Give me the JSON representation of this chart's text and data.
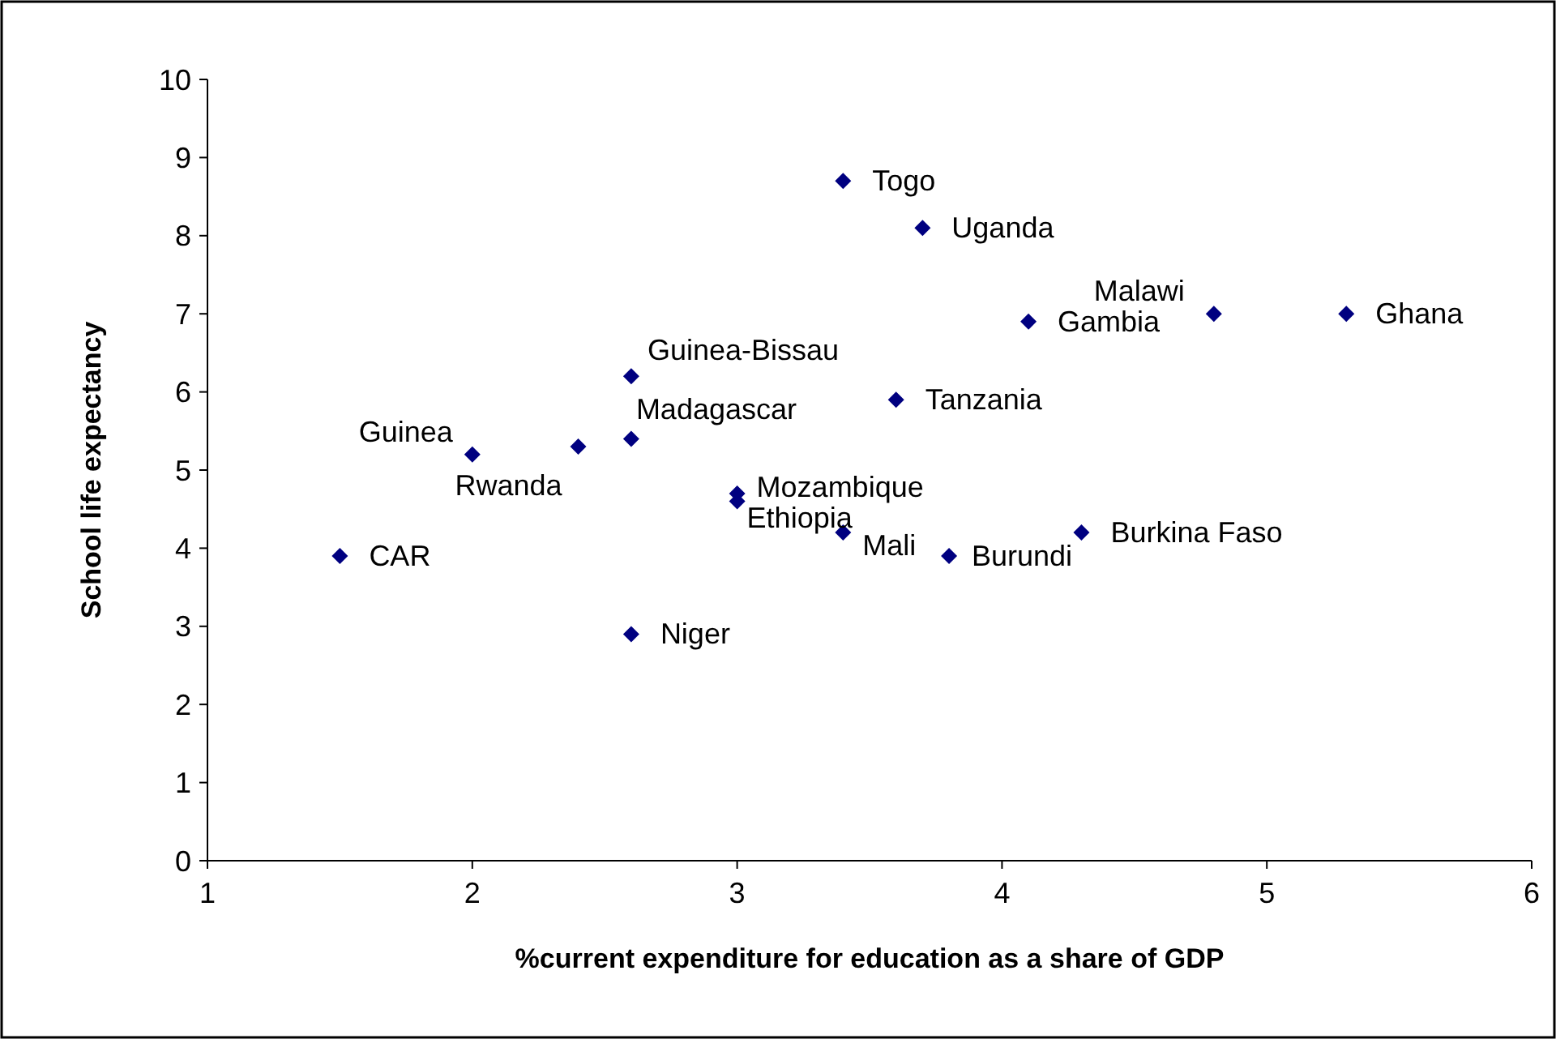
{
  "chart_data": {
    "type": "scatter",
    "xlabel": "%current expenditure for education as a share of GDP",
    "ylabel": "School life expectancy",
    "x": [
      3.4,
      3.7,
      4.8,
      5.3,
      4.1,
      2.6,
      3.6,
      2.0,
      2.4,
      2.6,
      3.0,
      3.0,
      3.4,
      3.8,
      4.3,
      1.5,
      2.6
    ],
    "series": [
      {
        "color": "#000080",
        "values": [
          8.7,
          8.1,
          7.0,
          7.0,
          6.9,
          6.2,
          5.9,
          5.2,
          5.3,
          5.4,
          4.7,
          4.6,
          4.2,
          3.9,
          4.2,
          3.9,
          2.9
        ]
      }
    ],
    "marker": "diamond",
    "grid": false,
    "xlim": [
      1,
      6
    ],
    "xticks": [
      1,
      2,
      3,
      4,
      5,
      6
    ],
    "ylim": [
      0,
      10
    ],
    "yticks": [
      0,
      1,
      2,
      3,
      4,
      5,
      6,
      7,
      8,
      9,
      10
    ],
    "annotations": [
      {
        "text": "Togo",
        "x": 3.4,
        "y": 8.7
      },
      {
        "text": "Uganda",
        "x": 3.7,
        "y": 8.1
      },
      {
        "text": "Malawi",
        "x": 4.8,
        "y": 7.0
      },
      {
        "text": "Ghana",
        "x": 5.3,
        "y": 7.0
      },
      {
        "text": "Gambia",
        "x": 4.1,
        "y": 6.9
      },
      {
        "text": "Guinea-Bissau",
        "x": 2.6,
        "y": 6.2
      },
      {
        "text": "Tanzania",
        "x": 3.6,
        "y": 5.9
      },
      {
        "text": "Guinea",
        "x": 2.0,
        "y": 5.2
      },
      {
        "text": "Rwanda",
        "x": 2.4,
        "y": 5.3
      },
      {
        "text": "Madagascar",
        "x": 2.6,
        "y": 5.4
      },
      {
        "text": "Mozambique",
        "x": 3.0,
        "y": 4.7
      },
      {
        "text": "Ethiopia",
        "x": 3.0,
        "y": 4.6
      },
      {
        "text": "Mali",
        "x": 3.4,
        "y": 4.2
      },
      {
        "text": "Burundi",
        "x": 3.8,
        "y": 3.9
      },
      {
        "text": "Burkina Faso",
        "x": 4.3,
        "y": 4.2
      },
      {
        "text": "CAR",
        "x": 1.5,
        "y": 3.9
      },
      {
        "text": "Niger",
        "x": 2.6,
        "y": 2.9
      }
    ]
  }
}
